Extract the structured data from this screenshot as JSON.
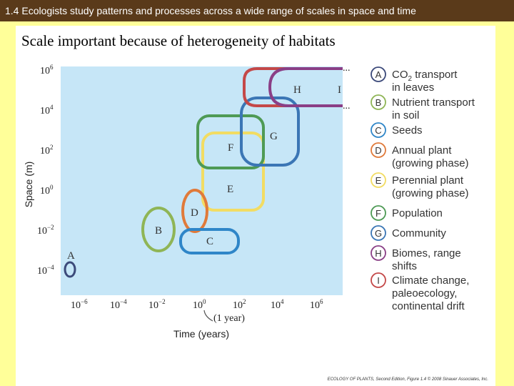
{
  "header": {
    "title": "1.4 Ecologists study patterns and processes across a wide range of scales in space and time"
  },
  "slide": {
    "heading": "Scale important because of heterogeneity of habitats",
    "credit": "ECOLOGY OF PLANTS, Second Edition, Figure 1.4 © 2008 Sinauer Associates, Inc."
  },
  "diagram": {
    "y_axis_label": "Space (m)",
    "x_axis_label": "Time (years)",
    "one_year_label": "(1 year)",
    "y_ticks": [
      {
        "base": "10",
        "exp": "6"
      },
      {
        "base": "10",
        "exp": "4"
      },
      {
        "base": "10",
        "exp": "2"
      },
      {
        "base": "10",
        "exp": "0"
      },
      {
        "base": "10",
        "exp": "−2"
      },
      {
        "base": "10",
        "exp": "−4"
      }
    ],
    "x_ticks": [
      {
        "base": "10",
        "exp": "−6"
      },
      {
        "base": "10",
        "exp": "−4"
      },
      {
        "base": "10",
        "exp": "−2"
      },
      {
        "base": "10",
        "exp": "0"
      },
      {
        "base": "10",
        "exp": "2"
      },
      {
        "base": "10",
        "exp": "4"
      },
      {
        "base": "10",
        "exp": "6"
      }
    ],
    "continuation_marks": "...",
    "regions": {
      "A": "A",
      "B": "B",
      "C": "C",
      "D": "D",
      "E": "E",
      "F": "F",
      "G": "G",
      "H": "H",
      "I": "I"
    },
    "colors": {
      "A": "#3c4a7a",
      "B": "#8fb556",
      "C": "#2f86c8",
      "D": "#e07a3a",
      "E": "#f2dc63",
      "F": "#4e9a55",
      "G": "#3b76b5",
      "H": "#8a3f86",
      "I": "#c44848"
    }
  },
  "legend": [
    {
      "letter": "A",
      "line1": "CO",
      "line1_sub": "2",
      "line1_rest": " transport",
      "line2": "in leaves"
    },
    {
      "letter": "B",
      "line1": "Nutrient transport",
      "line2": "in soil"
    },
    {
      "letter": "C",
      "line1": "Seeds"
    },
    {
      "letter": "D",
      "line1": "Annual plant",
      "line2": "(growing phase)"
    },
    {
      "letter": "E",
      "line1": "Perennial plant",
      "line2": "(growing phase)"
    },
    {
      "letter": "F",
      "line1": "Population"
    },
    {
      "letter": "G",
      "line1": "Community"
    },
    {
      "letter": "H",
      "line1": "Biomes, range",
      "line2": "shifts"
    },
    {
      "letter": "I",
      "line1": "Climate change,",
      "line2": "paleoecology,",
      "line3": "continental drift"
    }
  ]
}
